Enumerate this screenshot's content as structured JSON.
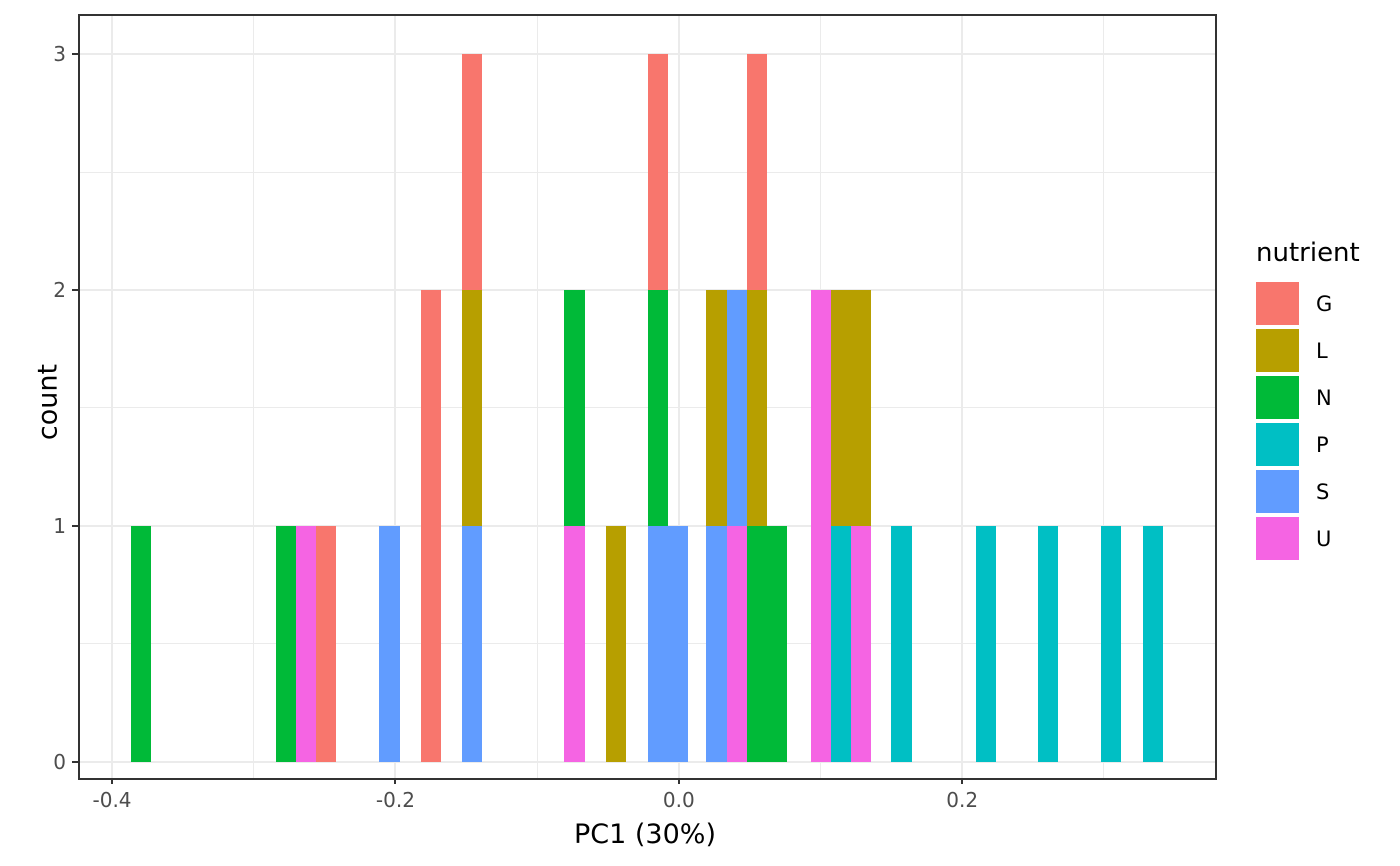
{
  "figure": {
    "background": "#ffffff",
    "panel_border_color": "#333333",
    "gridline_color": "#ebebeb",
    "tick_color": "#333333",
    "tick_label_color": "#4d4d4d"
  },
  "axes": {
    "x": {
      "title": "PC1 (30%)"
    },
    "y": {
      "title": "count"
    }
  },
  "legend": {
    "title": "nutrient",
    "entries": [
      {
        "label": "G",
        "color": "#F8766D"
      },
      {
        "label": "L",
        "color": "#B79F00"
      },
      {
        "label": "N",
        "color": "#00BA38"
      },
      {
        "label": "P",
        "color": "#00BFC4"
      },
      {
        "label": "S",
        "color": "#619CFF"
      },
      {
        "label": "U",
        "color": "#F564E3"
      }
    ]
  },
  "chart_data": {
    "type": "bar",
    "subtype": "stacked-histogram",
    "title": "",
    "xlabel": "PC1 (30%)",
    "ylabel": "count",
    "legend_title": "nutrient",
    "legend_position": "right",
    "grid": true,
    "binwidth": 0.01426,
    "x_axis": {
      "range": [
        -0.4226,
        0.3784
      ],
      "ticks": [
        -0.4,
        -0.2,
        0.0,
        0.2
      ],
      "tick_labels": [
        "-0.4",
        "-0.2",
        "0.0",
        "0.2"
      ],
      "minor_ticks": [
        -0.3,
        -0.1,
        0.1,
        0.3
      ]
    },
    "y_axis": {
      "range": [
        -0.0696,
        3.1623
      ],
      "ticks": [
        0,
        1,
        2,
        3
      ],
      "tick_labels": [
        "0",
        "1",
        "2",
        "3"
      ],
      "minor_ticks": [
        0.5,
        1.5,
        2.5
      ]
    },
    "series_colors": {
      "G": "#F8766D",
      "L": "#B79F00",
      "N": "#00BA38",
      "P": "#00BFC4",
      "S": "#619CFF",
      "U": "#F564E3"
    },
    "stack_note": "segments listed bottom-to-top",
    "bins": [
      {
        "x": -0.3797,
        "stack": [
          [
            "N",
            1
          ]
        ]
      },
      {
        "x": -0.2774,
        "stack": [
          [
            "N",
            1
          ]
        ]
      },
      {
        "x": -0.2632,
        "stack": [
          [
            "U",
            1
          ]
        ]
      },
      {
        "x": -0.2489,
        "stack": [
          [
            "G",
            1
          ]
        ]
      },
      {
        "x": -0.2042,
        "stack": [
          [
            "S",
            1
          ]
        ]
      },
      {
        "x": -0.1751,
        "stack": [
          [
            "G",
            2
          ]
        ]
      },
      {
        "x": -0.1459,
        "stack": [
          [
            "S",
            1
          ],
          [
            "L",
            1
          ],
          [
            "G",
            1
          ]
        ]
      },
      {
        "x": -0.0736,
        "stack": [
          [
            "U",
            1
          ],
          [
            "N",
            1
          ]
        ]
      },
      {
        "x": -0.0445,
        "stack": [
          [
            "L",
            1
          ]
        ]
      },
      {
        "x": -0.0147,
        "stack": [
          [
            "S",
            1
          ],
          [
            "N",
            1
          ],
          [
            "G",
            1
          ]
        ]
      },
      {
        "x": -0.0005,
        "stack": [
          [
            "S",
            1
          ]
        ]
      },
      {
        "x": 0.0266,
        "stack": [
          [
            "S",
            1
          ],
          [
            "L",
            1
          ]
        ]
      },
      {
        "x": 0.0408,
        "stack": [
          [
            "U",
            1
          ],
          [
            "S",
            1
          ]
        ]
      },
      {
        "x": 0.0549,
        "stack": [
          [
            "N",
            1
          ],
          [
            "L",
            1
          ],
          [
            "G",
            1
          ]
        ]
      },
      {
        "x": 0.0691,
        "stack": [
          [
            "N",
            1
          ]
        ]
      },
      {
        "x": 0.1004,
        "stack": [
          [
            "U",
            2
          ]
        ]
      },
      {
        "x": 0.1146,
        "stack": [
          [
            "P",
            1
          ],
          [
            "L",
            1
          ]
        ]
      },
      {
        "x": 0.1288,
        "stack": [
          [
            "U",
            1
          ],
          [
            "L",
            1
          ]
        ]
      },
      {
        "x": 0.1572,
        "stack": [
          [
            "P",
            1
          ]
        ]
      },
      {
        "x": 0.217,
        "stack": [
          [
            "P",
            1
          ]
        ]
      },
      {
        "x": 0.2608,
        "stack": [
          [
            "P",
            1
          ]
        ]
      },
      {
        "x": 0.305,
        "stack": [
          [
            "P",
            1
          ]
        ]
      },
      {
        "x": 0.3348,
        "stack": [
          [
            "P",
            1
          ]
        ]
      }
    ]
  }
}
